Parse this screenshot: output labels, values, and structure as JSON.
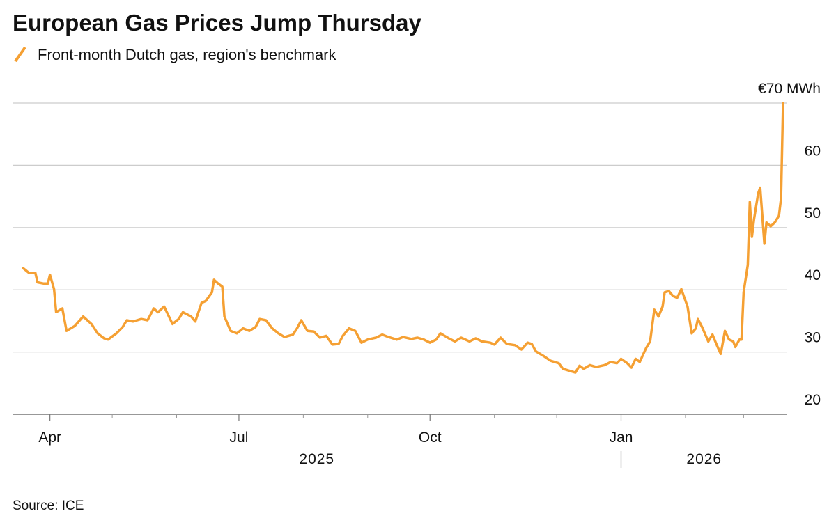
{
  "chart_data": {
    "type": "line",
    "title": "European Gas Prices Jump Thursday",
    "subtitle": "Front-month Dutch gas, region's benchmark",
    "source": "Source: ICE",
    "x": [
      "2025-03-19",
      "2025-03-22",
      "2025-03-25",
      "2025-03-26",
      "2025-03-29",
      "2025-03-31",
      "2025-04-01",
      "2025-04-03",
      "2025-04-04",
      "2025-04-07",
      "2025-04-09",
      "2025-04-13",
      "2025-04-17",
      "2025-04-21",
      "2025-04-24",
      "2025-04-27",
      "2025-04-29",
      "2025-05-03",
      "2025-05-06",
      "2025-05-08",
      "2025-05-11",
      "2025-05-15",
      "2025-05-18",
      "2025-05-21",
      "2025-05-23",
      "2025-05-26",
      "2025-05-30",
      "2025-06-02",
      "2025-06-04",
      "2025-06-08",
      "2025-06-10",
      "2025-06-13",
      "2025-06-15",
      "2025-06-18",
      "2025-06-19",
      "2025-06-21",
      "2025-06-23",
      "2025-06-24",
      "2025-06-27",
      "2025-06-30",
      "2025-07-03",
      "2025-07-06",
      "2025-07-09",
      "2025-07-11",
      "2025-07-14",
      "2025-07-17",
      "2025-07-20",
      "2025-07-23",
      "2025-07-27",
      "2025-07-29",
      "2025-07-31",
      "2025-08-03",
      "2025-08-06",
      "2025-08-09",
      "2025-08-12",
      "2025-08-15",
      "2025-08-18",
      "2025-08-20",
      "2025-08-23",
      "2025-08-26",
      "2025-08-29",
      "2025-09-01",
      "2025-09-05",
      "2025-09-08",
      "2025-09-11",
      "2025-09-15",
      "2025-09-18",
      "2025-09-22",
      "2025-09-25",
      "2025-09-28",
      "2025-10-01",
      "2025-10-04",
      "2025-10-06",
      "2025-10-10",
      "2025-10-13",
      "2025-10-16",
      "2025-10-20",
      "2025-10-23",
      "2025-10-26",
      "2025-10-30",
      "2025-11-01",
      "2025-11-04",
      "2025-11-07",
      "2025-11-11",
      "2025-11-14",
      "2025-11-17",
      "2025-11-19",
      "2025-11-21",
      "2025-11-25",
      "2025-11-28",
      "2025-12-02",
      "2025-12-04",
      "2025-12-07",
      "2025-12-10",
      "2025-12-12",
      "2025-12-14",
      "2025-12-17",
      "2025-12-20",
      "2025-12-24",
      "2025-12-27",
      "2025-12-30",
      "2026-01-01",
      "2026-01-04",
      "2026-01-06",
      "2026-01-08",
      "2026-01-10",
      "2026-01-13",
      "2026-01-15",
      "2026-01-17",
      "2026-01-19",
      "2026-01-21",
      "2026-01-22",
      "2026-01-24",
      "2026-01-26",
      "2026-01-28",
      "2026-01-30",
      "2026-02-02",
      "2026-02-04",
      "2026-02-06",
      "2026-02-07",
      "2026-02-09",
      "2026-02-12",
      "2026-02-14",
      "2026-02-16",
      "2026-02-18",
      "2026-02-20",
      "2026-02-22",
      "2026-02-24",
      "2026-02-25",
      "2026-02-27",
      "2026-02-28",
      "2026-03-01",
      "2026-03-03",
      "2026-03-04",
      "2026-03-05",
      "2026-03-06",
      "2026-03-08",
      "2026-03-09",
      "2026-03-11",
      "2026-03-12",
      "2026-03-14",
      "2026-03-16",
      "2026-03-18",
      "2026-03-19",
      "2026-03-20"
    ],
    "series": [
      {
        "name": "Front-month Dutch gas, region's benchmark",
        "color": "#f5a033",
        "values": [
          43.5,
          42.7,
          42.7,
          41.2,
          41,
          41,
          42.4,
          40.1,
          36.4,
          37,
          33.4,
          34.2,
          35.7,
          34.5,
          33,
          32.2,
          32,
          33,
          34,
          35.1,
          34.9,
          35.3,
          35.1,
          37,
          36.4,
          37.3,
          34.5,
          35.3,
          36.4,
          35.7,
          34.9,
          37.9,
          38.2,
          39.6,
          41.6,
          41,
          40.5,
          35.7,
          33.4,
          33,
          33.8,
          33.4,
          34,
          35.3,
          35.1,
          33.8,
          33,
          32.4,
          32.8,
          33.8,
          35.1,
          33.4,
          33.3,
          32.3,
          32.6,
          31.2,
          31.3,
          32.6,
          33.8,
          33.4,
          31.5,
          32,
          32.3,
          32.8,
          32.4,
          32,
          32.4,
          32.1,
          32.3,
          32,
          31.5,
          32,
          33,
          32.2,
          31.7,
          32.3,
          31.7,
          32.2,
          31.7,
          31.5,
          31.2,
          32.3,
          31.3,
          31.1,
          30.4,
          31.5,
          31.3,
          30.1,
          29.3,
          28.6,
          28.2,
          27.3,
          27,
          26.7,
          27.8,
          27.3,
          27.9,
          27.6,
          27.9,
          28.4,
          28.2,
          28.9,
          28.2,
          27.5,
          28.9,
          28.4,
          30.6,
          31.7,
          36.8,
          35.7,
          37.3,
          39.6,
          39.8,
          39,
          38.7,
          40.1,
          37.3,
          33,
          33.8,
          35.3,
          34,
          31.7,
          32.8,
          31.2,
          29.7,
          33.4,
          32,
          31.7,
          30.8,
          32,
          32,
          39.6,
          44,
          54.1,
          48.5,
          51.3,
          55.5,
          56.4,
          47.4,
          50.8,
          50.2,
          50.8,
          51.9,
          54.7,
          70
        ]
      }
    ],
    "xlim": [
      "2025-03-14",
      "2026-03-22"
    ],
    "xticks": [
      {
        "value": "2025-04-01",
        "label": "Apr"
      },
      {
        "value": "2025-07-01",
        "label": "Jul"
      },
      {
        "value": "2025-10-01",
        "label": "Oct"
      },
      {
        "value": "2026-01-01",
        "label": "Jan"
      }
    ],
    "xticks_minor": [
      "2025-05-01",
      "2025-06-01",
      "2025-08-01",
      "2025-09-01",
      "2025-11-01",
      "2025-12-01",
      "2026-02-01",
      "2026-03-01"
    ],
    "years": [
      {
        "value": "2025-01-01",
        "label": "2025"
      },
      {
        "value": "2026-01-01",
        "label": "2026"
      }
    ],
    "ylim": [
      20,
      70
    ],
    "yticks": [
      20,
      30,
      40,
      50,
      60,
      {
        "value": 70,
        "label": "€70 MWh"
      }
    ],
    "grid": true
  }
}
